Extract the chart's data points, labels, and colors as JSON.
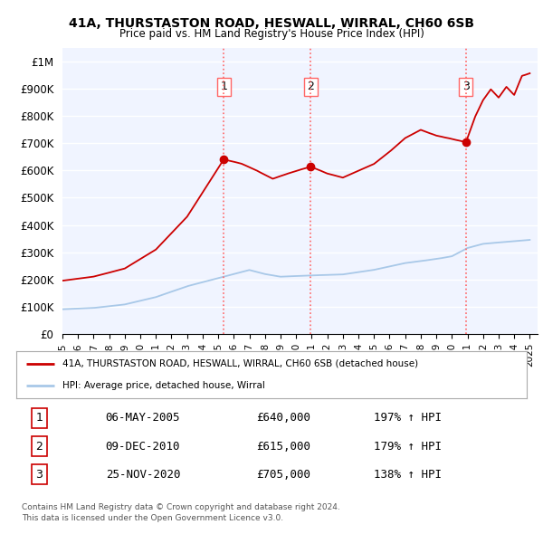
{
  "title1": "41A, THURSTASTON ROAD, HESWALL, WIRRAL, CH60 6SB",
  "title2": "Price paid vs. HM Land Registry's House Price Index (HPI)",
  "xlim_start": 1995.0,
  "xlim_end": 2025.5,
  "ylim_bottom": 0,
  "ylim_top": 1050000,
  "yticks": [
    0,
    100000,
    200000,
    300000,
    400000,
    500000,
    600000,
    700000,
    800000,
    900000,
    1000000
  ],
  "ytick_labels": [
    "£0",
    "£100K",
    "£200K",
    "£300K",
    "£400K",
    "£500K",
    "£600K",
    "£700K",
    "£800K",
    "£900K",
    "£1M"
  ],
  "sale_dates": [
    2005.35,
    2010.93,
    2020.9
  ],
  "sale_prices": [
    640000,
    615000,
    705000
  ],
  "sale_labels": [
    "1",
    "2",
    "3"
  ],
  "vline_color": "#ff6666",
  "vline_style": ":",
  "sale_dot_color": "#cc0000",
  "legend_line1": "41A, THURSTASTON ROAD, HESWALL, WIRRAL, CH60 6SB (detached house)",
  "legend_line2": "HPI: Average price, detached house, Wirral",
  "table_rows": [
    [
      "1",
      "06-MAY-2005",
      "£640,000",
      "197% ↑ HPI"
    ],
    [
      "2",
      "09-DEC-2010",
      "£615,000",
      "179% ↑ HPI"
    ],
    [
      "3",
      "25-NOV-2020",
      "£705,000",
      "138% ↑ HPI"
    ]
  ],
  "footnote1": "Contains HM Land Registry data © Crown copyright and database right 2024.",
  "footnote2": "This data is licensed under the Open Government Licence v3.0.",
  "hpi_line_color": "#a8c8e8",
  "price_line_color": "#cc0000",
  "bg_color": "#ffffff",
  "plot_bg_color": "#f0f4ff",
  "grid_color": "#ffffff"
}
